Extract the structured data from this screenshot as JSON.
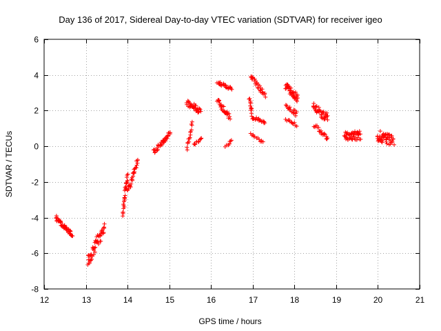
{
  "chart_data": {
    "type": "scatter",
    "title": "Day 136 of 2017, Sidereal Day-to-day VTEC variation (SDTVAR) for receiver igeo",
    "xlabel": "GPS time / hours",
    "ylabel": "SDTVAR / TECUs",
    "xlim": [
      12,
      21
    ],
    "ylim": [
      -8,
      6
    ],
    "xticks": [
      12,
      13,
      14,
      15,
      16,
      17,
      18,
      19,
      20,
      21
    ],
    "yticks": [
      -8,
      -6,
      -4,
      -2,
      0,
      2,
      4,
      6
    ],
    "grid": true,
    "marker": "+",
    "color": "#ff0000",
    "series": [
      {
        "name": "SDTVAR",
        "clusters": [
          {
            "x0": 12.28,
            "x1": 12.68,
            "y0": -4.0,
            "y1": -5.0,
            "spread": 0.25,
            "n": 45
          },
          {
            "x0": 13.05,
            "x1": 13.45,
            "y0": -6.5,
            "y1": -4.5,
            "spread": 0.8,
            "n": 55
          },
          {
            "x0": 13.88,
            "x1": 14.0,
            "y0": -3.8,
            "y1": -1.6,
            "spread": 0.5,
            "n": 30
          },
          {
            "x0": 14.0,
            "x1": 14.25,
            "y0": -2.6,
            "y1": -0.8,
            "spread": 0.35,
            "n": 30
          },
          {
            "x0": 14.62,
            "x1": 15.02,
            "y0": -0.3,
            "y1": 0.7,
            "spread": 0.25,
            "n": 40
          },
          {
            "x0": 15.42,
            "x1": 15.75,
            "y0": 2.4,
            "y1": 2.0,
            "spread": 0.35,
            "n": 35
          },
          {
            "x0": 15.42,
            "x1": 15.55,
            "y0": -0.1,
            "y1": 1.3,
            "spread": 0.3,
            "n": 15
          },
          {
            "x0": 15.6,
            "x1": 15.78,
            "y0": 0.1,
            "y1": 0.4,
            "spread": 0.15,
            "n": 12
          },
          {
            "x0": 16.15,
            "x1": 16.5,
            "y0": 3.6,
            "y1": 3.2,
            "spread": 0.2,
            "n": 25
          },
          {
            "x0": 16.15,
            "x1": 16.45,
            "y0": 2.6,
            "y1": 1.6,
            "spread": 0.35,
            "n": 30
          },
          {
            "x0": 16.35,
            "x1": 16.5,
            "y0": 0.0,
            "y1": 0.3,
            "spread": 0.15,
            "n": 8
          },
          {
            "x0": 16.95,
            "x1": 17.3,
            "y0": 4.0,
            "y1": 2.8,
            "spread": 0.3,
            "n": 30
          },
          {
            "x0": 16.92,
            "x1": 17.0,
            "y0": 2.6,
            "y1": 1.6,
            "spread": 0.3,
            "n": 15
          },
          {
            "x0": 17.02,
            "x1": 17.3,
            "y0": 1.6,
            "y1": 1.3,
            "spread": 0.2,
            "n": 18
          },
          {
            "x0": 16.95,
            "x1": 17.25,
            "y0": 0.7,
            "y1": 0.2,
            "spread": 0.15,
            "n": 12
          },
          {
            "x0": 17.78,
            "x1": 18.08,
            "y0": 3.4,
            "y1": 2.7,
            "spread": 0.45,
            "n": 40
          },
          {
            "x0": 17.8,
            "x1": 18.05,
            "y0": 2.3,
            "y1": 1.8,
            "spread": 0.3,
            "n": 18
          },
          {
            "x0": 17.8,
            "x1": 18.05,
            "y0": 1.5,
            "y1": 1.2,
            "spread": 0.15,
            "n": 12
          },
          {
            "x0": 18.45,
            "x1": 18.8,
            "y0": 2.2,
            "y1": 1.6,
            "spread": 0.5,
            "n": 40
          },
          {
            "x0": 18.48,
            "x1": 18.8,
            "y0": 1.2,
            "y1": 0.4,
            "spread": 0.2,
            "n": 20
          },
          {
            "x0": 19.2,
            "x1": 19.58,
            "y0": 0.6,
            "y1": 0.6,
            "spread": 0.5,
            "n": 45
          },
          {
            "x0": 19.98,
            "x1": 20.38,
            "y0": 0.6,
            "y1": 0.3,
            "spread": 0.6,
            "n": 50
          }
        ]
      }
    ]
  }
}
